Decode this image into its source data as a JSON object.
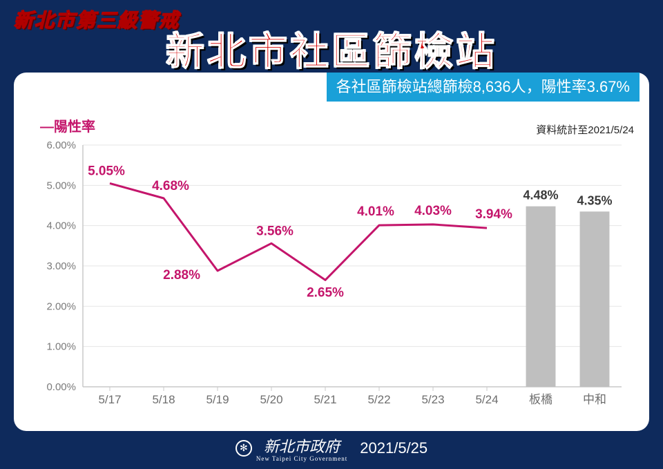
{
  "header": {
    "alert_label": "新北市第三級警戒",
    "main_title": "新北市社區篩檢站"
  },
  "summary": {
    "text": "各社區篩檢站總篩檢8,636人，陽性率3.67%",
    "data_note": "資料統計至2021/5/24"
  },
  "chart": {
    "legend_label": "—陽性率",
    "type": "line+bar",
    "y_axis": {
      "min": 0.0,
      "max": 6.0,
      "tick_step": 1.0,
      "tick_labels": [
        "0.00%",
        "1.00%",
        "2.00%",
        "3.00%",
        "4.00%",
        "5.00%",
        "6.00%"
      ],
      "axis_color": "#c9c9c9",
      "grid_color": "#e6e6e6",
      "tick_fontsize": 15,
      "tick_color": "#7a7a7a"
    },
    "x_axis": {
      "line_categories": [
        "5/17",
        "5/18",
        "5/19",
        "5/20",
        "5/21",
        "5/22",
        "5/23",
        "5/24"
      ],
      "bar_categories": [
        "板橋",
        "中和"
      ],
      "tick_fontsize": 17,
      "tick_color": "#6e6e6e"
    },
    "line_series": {
      "color": "#c4156b",
      "line_width": 3,
      "values": [
        5.05,
        4.68,
        2.88,
        3.56,
        2.65,
        4.01,
        4.03,
        3.94
      ],
      "data_label_color": "#c4156b",
      "data_label_fontsize": 19,
      "data_label_weight": "700"
    },
    "bar_series": {
      "color": "#bfbfbf",
      "bar_width_ratio": 0.55,
      "values": [
        4.48,
        4.35
      ],
      "data_label_color": "#3a3a3a",
      "data_label_fontsize": 18,
      "data_label_weight": "600"
    },
    "background_color": "#ffffff"
  },
  "footer": {
    "org_name": "新北市政府",
    "org_sub": "New Taipei City Government",
    "date": "2021/5/25"
  }
}
